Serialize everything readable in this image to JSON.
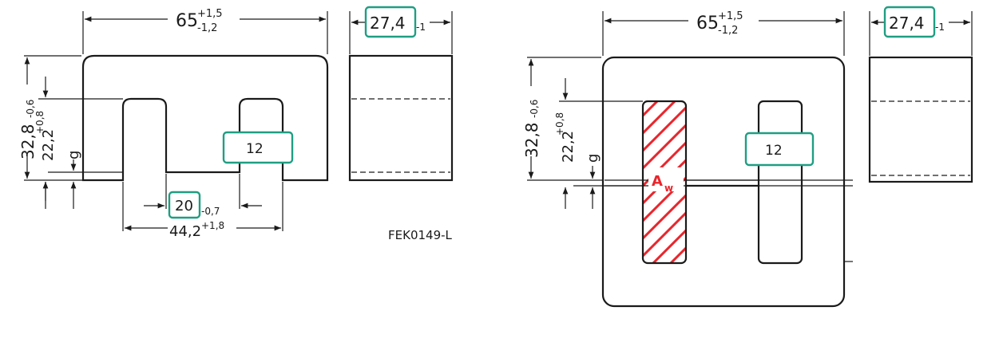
{
  "left_drawing": {
    "width_dim": "65",
    "width_tol_upper": "+1,5",
    "width_tol_lower": "-1,2",
    "depth_dim": "27,4",
    "depth_tol": "-1",
    "height_dim": "32,8",
    "height_tol": "-0,6",
    "window_height_dim": "22,2",
    "window_height_tol": "+0,8",
    "gap_label": "g",
    "leg_width_dim": "12",
    "center_leg_dim": "20",
    "center_leg_tol": "-0,7",
    "window_span_dim": "44,2",
    "window_span_tol": "+1,8",
    "drawing_code": "FEK0149-L"
  },
  "right_drawing": {
    "width_dim": "65",
    "width_tol_upper": "+1,5",
    "width_tol_lower": "-1,2",
    "depth_dim": "27,4",
    "depth_tol": "-1",
    "height_dim": "32,8",
    "height_tol": "-0,6",
    "window_height_dim": "22,2",
    "window_height_tol": "+0,8",
    "gap_label": "g",
    "leg_width_dim": "12",
    "area_label": "A",
    "area_subscript": "w"
  },
  "colors": {
    "highlight_border": "#1f9e82",
    "hatch": "#e8262d",
    "line": "#1a1a1a"
  }
}
